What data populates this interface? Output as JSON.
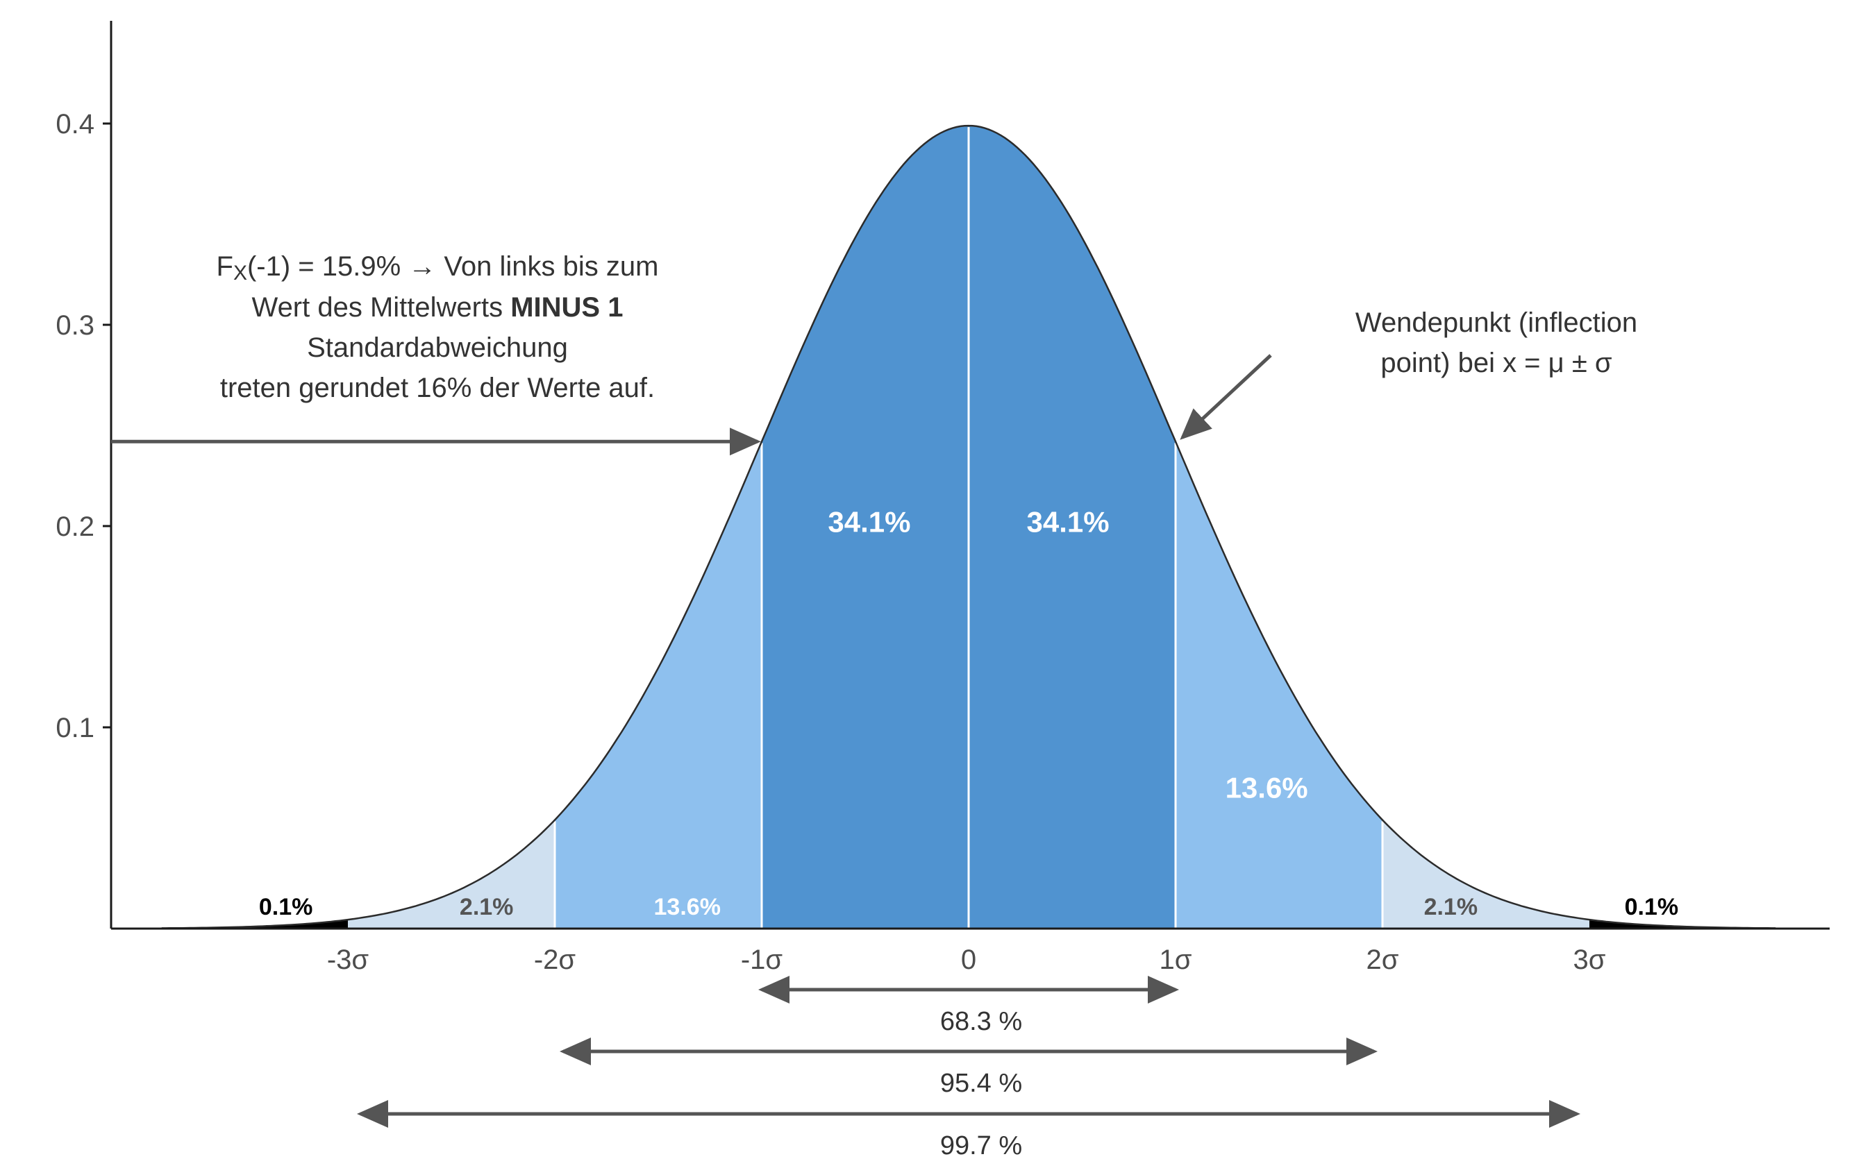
{
  "chart_data": {
    "type": "area",
    "title": "",
    "xlabel": "",
    "ylabel": "",
    "distribution": "standard normal density",
    "xlim": [
      -3.9,
      3.9
    ],
    "ylim": [
      0,
      0.45
    ],
    "y_ticks": [
      {
        "value": 0.1,
        "label": "0.1"
      },
      {
        "value": 0.2,
        "label": "0.2"
      },
      {
        "value": 0.3,
        "label": "0.3"
      },
      {
        "value": 0.4,
        "label": "0.4"
      }
    ],
    "x_ticks": [
      {
        "value": -3,
        "label": "-3σ"
      },
      {
        "value": -2,
        "label": "-2σ"
      },
      {
        "value": -1,
        "label": "-1σ"
      },
      {
        "value": 0,
        "label": "0"
      },
      {
        "value": 1,
        "label": "1σ"
      },
      {
        "value": 2,
        "label": "2σ"
      },
      {
        "value": 3,
        "label": "3σ"
      }
    ],
    "regions": [
      {
        "from": -3.9,
        "to": -3,
        "label": "0.1%",
        "label_x": -3.3,
        "color": "#000000",
        "label_color": "#000000"
      },
      {
        "from": -3,
        "to": -2,
        "label": "2.1%",
        "label_x": -2.33,
        "color": "#cfe0f0",
        "label_color": "#555555"
      },
      {
        "from": -2,
        "to": -1,
        "label": "13.6%",
        "label_x": -1.36,
        "color": "#8ec0ee",
        "label_color": "#ffffff"
      },
      {
        "from": -1,
        "to": 0,
        "label": "34.1%",
        "label_x": -0.48,
        "color": "#5093d0",
        "label_color": "#ffffff"
      },
      {
        "from": 0,
        "to": 1,
        "label": "34.1%",
        "label_x": 0.48,
        "color": "#5093d0",
        "label_color": "#ffffff"
      },
      {
        "from": 1,
        "to": 2,
        "label": "13.6%",
        "label_x": 1.44,
        "color": "#8ec0ee",
        "label_color": "#ffffff"
      },
      {
        "from": 2,
        "to": 3,
        "label": "2.1%",
        "label_x": 2.33,
        "color": "#cfe0f0",
        "label_color": "#555555"
      },
      {
        "from": 3,
        "to": 3.9,
        "label": "0.1%",
        "label_x": 3.3,
        "color": "#000000",
        "label_color": "#000000"
      }
    ],
    "ranges": [
      {
        "from": -1,
        "to": 1,
        "label": "68.3 %"
      },
      {
        "from": -2,
        "to": 2,
        "label": "95.4 %"
      },
      {
        "from": -3,
        "to": 3,
        "label": "99.7 %"
      }
    ],
    "annotations": {
      "left": {
        "line1_prefix": "F",
        "line1_sub": "X",
        "line1_rest": "(-1) = 15.9% → Von links bis zum",
        "line2_prefix": "Wert des Mittelwerts ",
        "line2_bold": "MINUS 1",
        "line3": "Standardabweichung",
        "line4": "treten gerundet 16% der Werte auf.",
        "arrow_to_x": -1
      },
      "right": {
        "line1": "Wendepunkt (inflection",
        "line2": "point) bei x = μ ± σ",
        "arrow_to_x": 1
      }
    },
    "grid": false,
    "legend": "none",
    "colors": {
      "dark_blue": "#5093d0",
      "mid_blue": "#8ec0ee",
      "light_blue": "#cfe0f0",
      "tail": "#000000",
      "arrow": "#555555",
      "axis": "#1a1a1a"
    }
  }
}
